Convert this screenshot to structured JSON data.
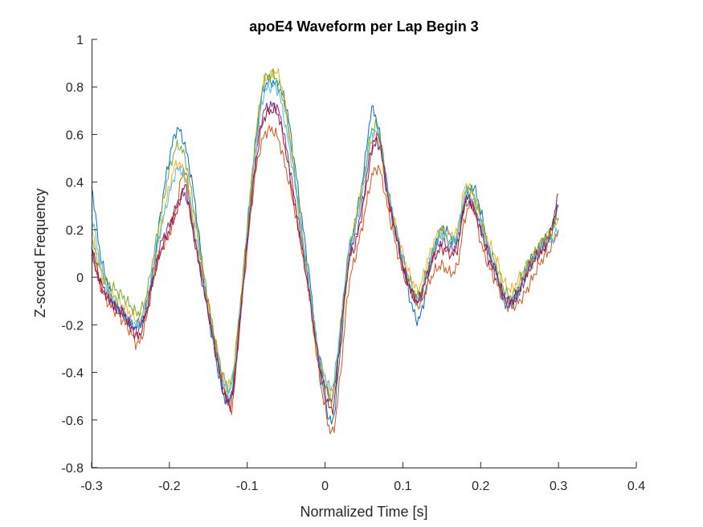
{
  "chart_data": {
    "type": "line",
    "title": "apoE4 Waveform per Lap Begin 3",
    "xlabel": "Normalized Time [s]",
    "ylabel": "Z-scored Frequency",
    "xlim": [
      -0.3,
      0.4
    ],
    "ylim": [
      -0.8,
      1
    ],
    "xticks": [
      -0.3,
      -0.2,
      -0.1,
      0,
      0.1,
      0.2,
      0.3,
      0.4
    ],
    "xtick_labels": [
      "-0.3",
      "-0.2",
      "-0.1",
      "0",
      "0.1",
      "0.2",
      "0.3",
      "0.4"
    ],
    "yticks": [
      -0.8,
      -0.6,
      -0.4,
      -0.2,
      0,
      0.2,
      0.4,
      0.6,
      0.8,
      1
    ],
    "ytick_labels": [
      "-0.8",
      "-0.6",
      "-0.4",
      "-0.2",
      "0",
      "0.2",
      "0.4",
      "0.6",
      "0.8",
      "1"
    ],
    "grid": false,
    "legend": "none",
    "x": [
      -0.3,
      -0.29,
      -0.28,
      -0.27,
      -0.26,
      -0.25,
      -0.24,
      -0.23,
      -0.22,
      -0.21,
      -0.2,
      -0.19,
      -0.18,
      -0.17,
      -0.16,
      -0.15,
      -0.14,
      -0.13,
      -0.12,
      -0.11,
      -0.1,
      -0.09,
      -0.08,
      -0.07,
      -0.06,
      -0.05,
      -0.04,
      -0.03,
      -0.02,
      -0.01,
      0,
      0.01,
      0.02,
      0.03,
      0.04,
      0.05,
      0.06,
      0.07,
      0.08,
      0.09,
      0.1,
      0.11,
      0.12,
      0.13,
      0.14,
      0.15,
      0.16,
      0.17,
      0.18,
      0.19,
      0.2,
      0.21,
      0.22,
      0.23,
      0.24,
      0.25,
      0.26,
      0.27,
      0.28,
      0.29,
      0.3
    ],
    "series": [
      {
        "color": "#0072BD",
        "values": [
          0.38,
          0.12,
          -0.02,
          -0.12,
          -0.15,
          -0.2,
          -0.2,
          -0.15,
          0.05,
          0.3,
          0.5,
          0.62,
          0.55,
          0.38,
          0.12,
          -0.15,
          -0.35,
          -0.5,
          -0.48,
          -0.2,
          0.2,
          0.55,
          0.78,
          0.82,
          0.8,
          0.72,
          0.5,
          0.25,
          0.0,
          -0.3,
          -0.52,
          -0.6,
          -0.3,
          0.05,
          0.25,
          0.45,
          0.7,
          0.6,
          0.38,
          0.2,
          0.05,
          -0.1,
          -0.18,
          -0.05,
          0.12,
          0.2,
          0.18,
          0.15,
          0.32,
          0.38,
          0.28,
          0.12,
          0.02,
          -0.1,
          -0.12,
          -0.05,
          0.05,
          0.1,
          0.15,
          0.2,
          0.3
        ]
      },
      {
        "color": "#D95319",
        "values": [
          0.1,
          -0.02,
          -0.1,
          -0.14,
          -0.18,
          -0.23,
          -0.28,
          -0.18,
          0.0,
          0.12,
          0.18,
          0.32,
          0.45,
          0.22,
          0.05,
          -0.12,
          -0.3,
          -0.45,
          -0.55,
          -0.22,
          0.12,
          0.42,
          0.58,
          0.62,
          0.58,
          0.45,
          0.3,
          0.12,
          -0.08,
          -0.35,
          -0.55,
          -0.65,
          -0.4,
          -0.05,
          0.1,
          0.25,
          0.42,
          0.45,
          0.3,
          0.15,
          0.02,
          -0.05,
          -0.12,
          -0.05,
          0.02,
          0.05,
          0.02,
          0.05,
          0.25,
          0.3,
          0.15,
          0.05,
          -0.02,
          -0.1,
          -0.12,
          -0.1,
          -0.05,
          0.02,
          0.08,
          0.12,
          0.2
        ]
      },
      {
        "color": "#EDB120",
        "values": [
          0.2,
          0.05,
          -0.05,
          -0.08,
          -0.12,
          -0.15,
          -0.18,
          -0.1,
          0.05,
          0.22,
          0.38,
          0.48,
          0.42,
          0.28,
          0.08,
          -0.12,
          -0.3,
          -0.45,
          -0.42,
          -0.15,
          0.2,
          0.55,
          0.8,
          0.85,
          0.85,
          0.7,
          0.45,
          0.2,
          -0.05,
          -0.3,
          -0.42,
          -0.48,
          -0.25,
          0.05,
          0.25,
          0.4,
          0.58,
          0.55,
          0.35,
          0.22,
          0.1,
          0.0,
          -0.05,
          0.05,
          0.15,
          0.2,
          0.18,
          0.2,
          0.38,
          0.35,
          0.25,
          0.15,
          0.08,
          -0.02,
          -0.05,
          0.0,
          0.05,
          0.1,
          0.15,
          0.2,
          0.25
        ]
      },
      {
        "color": "#7E2F8E",
        "values": [
          0.1,
          -0.02,
          -0.08,
          -0.12,
          -0.15,
          -0.2,
          -0.22,
          -0.12,
          0.02,
          0.15,
          0.22,
          0.3,
          0.35,
          0.2,
          0.02,
          -0.15,
          -0.32,
          -0.48,
          -0.5,
          -0.2,
          0.15,
          0.48,
          0.68,
          0.72,
          0.7,
          0.55,
          0.35,
          0.15,
          -0.05,
          -0.3,
          -0.45,
          -0.5,
          -0.22,
          0.08,
          0.18,
          0.35,
          0.55,
          0.55,
          0.35,
          0.2,
          0.05,
          -0.05,
          -0.1,
          0.0,
          0.1,
          0.15,
          0.12,
          0.15,
          0.3,
          0.3,
          0.2,
          0.08,
          0.0,
          -0.08,
          -0.1,
          -0.05,
          0.02,
          0.08,
          0.12,
          0.18,
          0.3
        ]
      },
      {
        "color": "#77AC30",
        "values": [
          0.15,
          0.05,
          -0.02,
          -0.05,
          -0.08,
          -0.12,
          -0.15,
          -0.08,
          0.1,
          0.28,
          0.45,
          0.55,
          0.5,
          0.32,
          0.1,
          -0.1,
          -0.28,
          -0.42,
          -0.45,
          -0.15,
          0.2,
          0.55,
          0.8,
          0.85,
          0.82,
          0.68,
          0.45,
          0.2,
          -0.05,
          -0.3,
          -0.45,
          -0.5,
          -0.2,
          0.1,
          0.25,
          0.42,
          0.62,
          0.6,
          0.38,
          0.22,
          0.08,
          -0.02,
          -0.08,
          0.02,
          0.12,
          0.18,
          0.15,
          0.18,
          0.35,
          0.35,
          0.25,
          0.12,
          0.05,
          -0.05,
          -0.08,
          -0.02,
          0.05,
          0.1,
          0.15,
          0.18,
          0.25
        ]
      },
      {
        "color": "#4DBEEE",
        "values": [
          0.25,
          0.08,
          -0.05,
          -0.1,
          -0.15,
          -0.18,
          -0.2,
          -0.12,
          0.05,
          0.22,
          0.35,
          0.45,
          0.42,
          0.25,
          0.05,
          -0.15,
          -0.32,
          -0.45,
          -0.45,
          -0.18,
          0.18,
          0.5,
          0.75,
          0.8,
          0.78,
          0.62,
          0.42,
          0.18,
          -0.05,
          -0.28,
          -0.42,
          -0.45,
          -0.2,
          0.1,
          0.22,
          0.4,
          0.6,
          0.58,
          0.38,
          0.22,
          0.08,
          -0.05,
          -0.1,
          0.0,
          0.12,
          0.18,
          0.15,
          0.18,
          0.35,
          0.32,
          0.22,
          0.12,
          0.02,
          -0.08,
          -0.1,
          -0.05,
          0.02,
          0.08,
          0.12,
          0.15,
          0.2
        ]
      },
      {
        "color": "#A2142F",
        "values": [
          0.12,
          0.0,
          -0.08,
          -0.12,
          -0.15,
          -0.2,
          -0.25,
          -0.15,
          0.0,
          0.12,
          0.2,
          0.28,
          0.38,
          0.2,
          0.02,
          -0.15,
          -0.32,
          -0.48,
          -0.52,
          -0.2,
          0.15,
          0.45,
          0.65,
          0.7,
          0.68,
          0.52,
          0.32,
          0.12,
          -0.08,
          -0.32,
          -0.48,
          -0.55,
          -0.25,
          0.05,
          0.15,
          0.32,
          0.52,
          0.58,
          0.35,
          0.2,
          0.05,
          -0.05,
          -0.1,
          0.0,
          0.08,
          0.12,
          0.1,
          0.12,
          0.32,
          0.3,
          0.2,
          0.1,
          0.02,
          -0.08,
          -0.1,
          -0.05,
          0.02,
          0.08,
          0.12,
          0.18,
          0.35
        ]
      }
    ]
  }
}
